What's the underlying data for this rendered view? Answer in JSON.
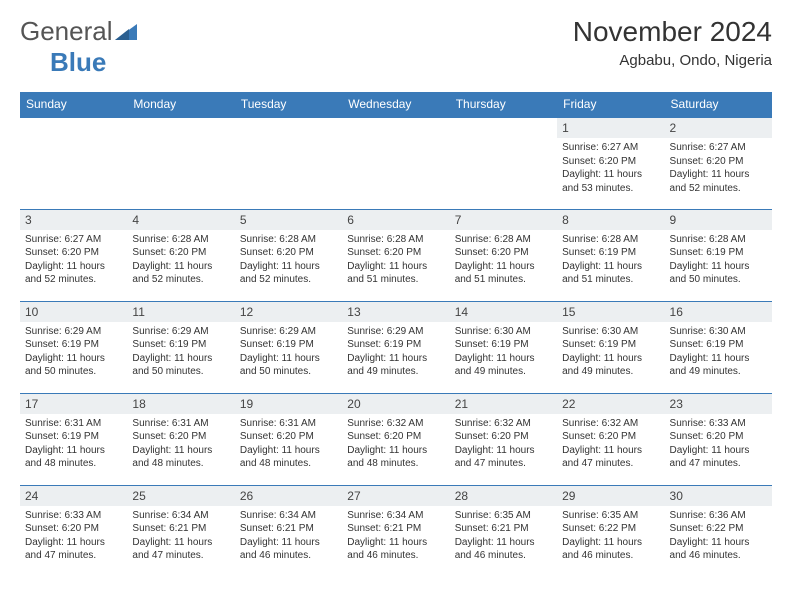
{
  "logo": {
    "general": "General",
    "blue": "Blue"
  },
  "title": "November 2024",
  "location": "Agbabu, Ondo, Nigeria",
  "colors": {
    "brand_blue": "#3a7ab8",
    "header_bg": "#3a7ab8",
    "daynum_bg": "#eceff1"
  },
  "weekdays": [
    "Sunday",
    "Monday",
    "Tuesday",
    "Wednesday",
    "Thursday",
    "Friday",
    "Saturday"
  ],
  "font": {
    "title_size": 28,
    "weekday_size": 12,
    "body_size": 10
  },
  "weeks": [
    [
      null,
      null,
      null,
      null,
      null,
      {
        "d": "1",
        "sr": "Sunrise: 6:27 AM",
        "ss": "Sunset: 6:20 PM",
        "dl": "Daylight: 11 hours and 53 minutes."
      },
      {
        "d": "2",
        "sr": "Sunrise: 6:27 AM",
        "ss": "Sunset: 6:20 PM",
        "dl": "Daylight: 11 hours and 52 minutes."
      }
    ],
    [
      {
        "d": "3",
        "sr": "Sunrise: 6:27 AM",
        "ss": "Sunset: 6:20 PM",
        "dl": "Daylight: 11 hours and 52 minutes."
      },
      {
        "d": "4",
        "sr": "Sunrise: 6:28 AM",
        "ss": "Sunset: 6:20 PM",
        "dl": "Daylight: 11 hours and 52 minutes."
      },
      {
        "d": "5",
        "sr": "Sunrise: 6:28 AM",
        "ss": "Sunset: 6:20 PM",
        "dl": "Daylight: 11 hours and 52 minutes."
      },
      {
        "d": "6",
        "sr": "Sunrise: 6:28 AM",
        "ss": "Sunset: 6:20 PM",
        "dl": "Daylight: 11 hours and 51 minutes."
      },
      {
        "d": "7",
        "sr": "Sunrise: 6:28 AM",
        "ss": "Sunset: 6:20 PM",
        "dl": "Daylight: 11 hours and 51 minutes."
      },
      {
        "d": "8",
        "sr": "Sunrise: 6:28 AM",
        "ss": "Sunset: 6:19 PM",
        "dl": "Daylight: 11 hours and 51 minutes."
      },
      {
        "d": "9",
        "sr": "Sunrise: 6:28 AM",
        "ss": "Sunset: 6:19 PM",
        "dl": "Daylight: 11 hours and 50 minutes."
      }
    ],
    [
      {
        "d": "10",
        "sr": "Sunrise: 6:29 AM",
        "ss": "Sunset: 6:19 PM",
        "dl": "Daylight: 11 hours and 50 minutes."
      },
      {
        "d": "11",
        "sr": "Sunrise: 6:29 AM",
        "ss": "Sunset: 6:19 PM",
        "dl": "Daylight: 11 hours and 50 minutes."
      },
      {
        "d": "12",
        "sr": "Sunrise: 6:29 AM",
        "ss": "Sunset: 6:19 PM",
        "dl": "Daylight: 11 hours and 50 minutes."
      },
      {
        "d": "13",
        "sr": "Sunrise: 6:29 AM",
        "ss": "Sunset: 6:19 PM",
        "dl": "Daylight: 11 hours and 49 minutes."
      },
      {
        "d": "14",
        "sr": "Sunrise: 6:30 AM",
        "ss": "Sunset: 6:19 PM",
        "dl": "Daylight: 11 hours and 49 minutes."
      },
      {
        "d": "15",
        "sr": "Sunrise: 6:30 AM",
        "ss": "Sunset: 6:19 PM",
        "dl": "Daylight: 11 hours and 49 minutes."
      },
      {
        "d": "16",
        "sr": "Sunrise: 6:30 AM",
        "ss": "Sunset: 6:19 PM",
        "dl": "Daylight: 11 hours and 49 minutes."
      }
    ],
    [
      {
        "d": "17",
        "sr": "Sunrise: 6:31 AM",
        "ss": "Sunset: 6:19 PM",
        "dl": "Daylight: 11 hours and 48 minutes."
      },
      {
        "d": "18",
        "sr": "Sunrise: 6:31 AM",
        "ss": "Sunset: 6:20 PM",
        "dl": "Daylight: 11 hours and 48 minutes."
      },
      {
        "d": "19",
        "sr": "Sunrise: 6:31 AM",
        "ss": "Sunset: 6:20 PM",
        "dl": "Daylight: 11 hours and 48 minutes."
      },
      {
        "d": "20",
        "sr": "Sunrise: 6:32 AM",
        "ss": "Sunset: 6:20 PM",
        "dl": "Daylight: 11 hours and 48 minutes."
      },
      {
        "d": "21",
        "sr": "Sunrise: 6:32 AM",
        "ss": "Sunset: 6:20 PM",
        "dl": "Daylight: 11 hours and 47 minutes."
      },
      {
        "d": "22",
        "sr": "Sunrise: 6:32 AM",
        "ss": "Sunset: 6:20 PM",
        "dl": "Daylight: 11 hours and 47 minutes."
      },
      {
        "d": "23",
        "sr": "Sunrise: 6:33 AM",
        "ss": "Sunset: 6:20 PM",
        "dl": "Daylight: 11 hours and 47 minutes."
      }
    ],
    [
      {
        "d": "24",
        "sr": "Sunrise: 6:33 AM",
        "ss": "Sunset: 6:20 PM",
        "dl": "Daylight: 11 hours and 47 minutes."
      },
      {
        "d": "25",
        "sr": "Sunrise: 6:34 AM",
        "ss": "Sunset: 6:21 PM",
        "dl": "Daylight: 11 hours and 47 minutes."
      },
      {
        "d": "26",
        "sr": "Sunrise: 6:34 AM",
        "ss": "Sunset: 6:21 PM",
        "dl": "Daylight: 11 hours and 46 minutes."
      },
      {
        "d": "27",
        "sr": "Sunrise: 6:34 AM",
        "ss": "Sunset: 6:21 PM",
        "dl": "Daylight: 11 hours and 46 minutes."
      },
      {
        "d": "28",
        "sr": "Sunrise: 6:35 AM",
        "ss": "Sunset: 6:21 PM",
        "dl": "Daylight: 11 hours and 46 minutes."
      },
      {
        "d": "29",
        "sr": "Sunrise: 6:35 AM",
        "ss": "Sunset: 6:22 PM",
        "dl": "Daylight: 11 hours and 46 minutes."
      },
      {
        "d": "30",
        "sr": "Sunrise: 6:36 AM",
        "ss": "Sunset: 6:22 PM",
        "dl": "Daylight: 11 hours and 46 minutes."
      }
    ]
  ]
}
